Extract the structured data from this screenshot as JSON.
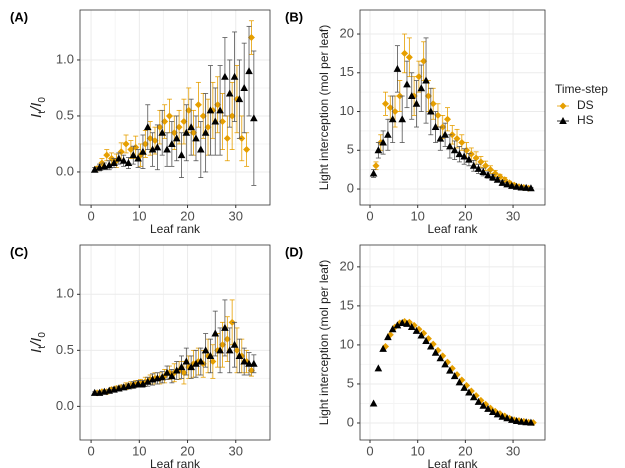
{
  "chart_data": [
    {
      "type": "scatter",
      "panel": "(A)",
      "xlabel": "Leaf rank",
      "ylabel": [
        "I",
        "t",
        "/I",
        "0"
      ],
      "xlim": [
        -2.3,
        37.1
      ],
      "ylim": [
        -0.295,
        1.446
      ],
      "xticks": [
        0,
        10,
        20,
        30
      ],
      "yticks": [
        {
          "value": 0,
          "label": "0.0"
        },
        {
          "value": 0.5,
          "label": "0.5"
        },
        {
          "value": 1,
          "label": "1.0"
        }
      ],
      "grid": true,
      "series": [
        {
          "color": "#E69F00",
          "marker": "diamond",
          "x": [
            1,
            2,
            3,
            4,
            5,
            6,
            7,
            8,
            9,
            10,
            11,
            12,
            13,
            14,
            15,
            16,
            17,
            18,
            19,
            20,
            21,
            22,
            23,
            24,
            25,
            26,
            27,
            28,
            29,
            30,
            31,
            32,
            33
          ],
          "values": [
            0.03,
            0.08,
            0.15,
            0.12,
            0.1,
            0.18,
            0.25,
            0.2,
            0.22,
            0.15,
            0.25,
            0.3,
            0.28,
            0.4,
            0.45,
            0.5,
            0.35,
            0.4,
            0.45,
            0.55,
            0.35,
            0.6,
            0.5,
            0.4,
            0.55,
            0.6,
            0.45,
            0.3,
            0.5,
            0.65,
            0.3,
            0.2,
            1.2
          ],
          "errors": [
            0.02,
            0.04,
            0.05,
            0.05,
            0.06,
            0.08,
            0.08,
            0.08,
            0.1,
            0.1,
            0.12,
            0.15,
            0.12,
            0.15,
            0.15,
            0.15,
            0.15,
            0.15,
            0.2,
            0.2,
            0.2,
            0.2,
            0.2,
            0.25,
            0.25,
            0.25,
            0.25,
            0.2,
            0.3,
            0.3,
            0.2,
            0.15,
            0.15
          ]
        },
        {
          "color": "#000000",
          "marker": "triangle",
          "x": [
            1,
            2,
            3,
            4,
            5,
            6,
            7,
            8,
            9,
            10,
            11,
            12,
            13,
            14,
            15,
            16,
            17,
            18,
            19,
            20,
            21,
            22,
            23,
            24,
            25,
            26,
            27,
            28,
            29,
            30,
            31,
            32,
            33,
            34
          ],
          "values": [
            0.02,
            0.04,
            0.05,
            0.06,
            0.08,
            0.12,
            0.1,
            0.08,
            0.15,
            0.12,
            0.18,
            0.4,
            0.2,
            0.22,
            0.35,
            0.2,
            0.25,
            0.3,
            0.15,
            0.35,
            0.4,
            0.3,
            0.2,
            0.35,
            0.55,
            0.45,
            0.55,
            0.85,
            0.7,
            0.85,
            0.65,
            0.75,
            0.9,
            0.48
          ],
          "errors": [
            0.02,
            0.03,
            0.03,
            0.04,
            0.04,
            0.05,
            0.05,
            0.05,
            0.08,
            0.08,
            0.15,
            0.2,
            0.15,
            0.2,
            0.2,
            0.15,
            0.2,
            0.2,
            0.2,
            0.25,
            0.25,
            0.2,
            0.25,
            0.35,
            0.4,
            0.3,
            0.4,
            0.35,
            0.3,
            0.4,
            0.35,
            0.4,
            0.4,
            0.6
          ]
        }
      ]
    },
    {
      "type": "scatter",
      "panel": "(B)",
      "xlabel": "Leaf rank",
      "ylabel": [
        "Light interception (mol per leaf)"
      ],
      "xlim": [
        -2.1,
        36.7
      ],
      "ylim": [
        -2.06,
        23.1
      ],
      "xticks": [
        0,
        10,
        20,
        30
      ],
      "yticks": [
        0,
        5,
        10,
        15,
        20
      ],
      "grid": true,
      "legend": {
        "title": "Time-step",
        "position": "right"
      },
      "series": [
        {
          "name": "DS",
          "color": "#E69F00",
          "marker": "diamond",
          "x": [
            1,
            2,
            3,
            4,
            5,
            6,
            7,
            8,
            9,
            10,
            11,
            12,
            13,
            14,
            15,
            16,
            17,
            18,
            19,
            20,
            21,
            22,
            23,
            24,
            25,
            26,
            27,
            28,
            29,
            30,
            31,
            32,
            33
          ],
          "values": [
            3,
            6,
            11,
            10.5,
            10,
            12,
            17.5,
            17,
            12,
            14.5,
            16.5,
            12,
            11,
            9.5,
            8,
            9,
            7,
            6.5,
            6,
            5,
            4.5,
            4,
            3.5,
            3,
            2.5,
            2,
            1.6,
            1.2,
            0.8,
            0.5,
            0.3,
            0.2,
            0.1
          ],
          "errors": [
            0.5,
            1,
            1.5,
            1.5,
            2,
            2,
            2.5,
            2.5,
            2.5,
            2,
            2.5,
            2,
            2,
            1.5,
            1.5,
            1.5,
            1.2,
            1.2,
            1,
            1,
            0.8,
            0.8,
            0.7,
            0.6,
            0.5,
            0.4,
            0.3,
            0.3,
            0.2,
            0.2,
            0.1,
            0.1,
            0.1
          ]
        },
        {
          "name": "HS",
          "color": "#000000",
          "marker": "triangle",
          "x": [
            1,
            2,
            3,
            4,
            5,
            6,
            7,
            8,
            9,
            10,
            11,
            12,
            13,
            14,
            15,
            16,
            17,
            18,
            19,
            20,
            21,
            22,
            23,
            24,
            25,
            26,
            27,
            28,
            29,
            30,
            31,
            32,
            33,
            34
          ],
          "values": [
            2,
            5,
            6,
            7,
            9,
            15.5,
            9,
            13.5,
            12,
            11,
            13,
            14,
            10,
            8,
            6.5,
            7,
            5.5,
            5,
            4.5,
            4.2,
            3.8,
            3,
            2.6,
            2.2,
            1.8,
            1.5,
            1.2,
            0.8,
            0.6,
            0.4,
            0.3,
            0.2,
            0.15,
            0.1
          ],
          "errors": [
            0.5,
            1,
            1.5,
            2,
            3,
            3,
            3,
            3,
            3,
            3,
            3,
            5.5,
            3,
            2,
            1.5,
            1.5,
            1.5,
            1.2,
            1,
            1,
            0.8,
            0.7,
            0.6,
            0.5,
            0.4,
            0.4,
            0.3,
            0.3,
            0.2,
            0.2,
            0.1,
            0.1,
            0.1,
            0.1
          ]
        }
      ]
    },
    {
      "type": "scatter",
      "panel": "(C)",
      "xlabel": "Leaf rank",
      "ylabel": [
        "I",
        "t",
        "/I",
        "0"
      ],
      "xlim": [
        -2.3,
        37.1
      ],
      "ylim": [
        -0.3,
        1.44
      ],
      "xticks": [
        0,
        10,
        20,
        30
      ],
      "yticks": [
        {
          "value": 0,
          "label": "0.0"
        },
        {
          "value": 0.5,
          "label": "0.5"
        },
        {
          "value": 1,
          "label": "1.0"
        }
      ],
      "grid": true,
      "series": [
        {
          "color": "#E69F00",
          "marker": "diamond",
          "x": [
            1,
            2,
            3,
            4,
            5,
            6,
            7,
            8,
            9,
            10,
            11,
            12,
            13,
            14,
            15,
            16,
            17,
            18,
            19,
            20,
            21,
            22,
            23,
            24,
            25,
            26,
            27,
            28,
            29,
            30,
            31,
            32,
            33
          ],
          "values": [
            0.12,
            0.13,
            0.13,
            0.15,
            0.16,
            0.17,
            0.18,
            0.19,
            0.2,
            0.21,
            0.22,
            0.24,
            0.25,
            0.25,
            0.27,
            0.3,
            0.3,
            0.32,
            0.3,
            0.35,
            0.38,
            0.4,
            0.38,
            0.45,
            0.4,
            0.5,
            0.55,
            0.6,
            0.75,
            0.5,
            0.45,
            0.4,
            0.32
          ],
          "errors": [
            0.01,
            0.01,
            0.02,
            0.02,
            0.02,
            0.02,
            0.03,
            0.03,
            0.03,
            0.03,
            0.04,
            0.04,
            0.05,
            0.05,
            0.06,
            0.06,
            0.08,
            0.08,
            0.1,
            0.1,
            0.12,
            0.12,
            0.12,
            0.15,
            0.15,
            0.15,
            0.2,
            0.2,
            0.2,
            0.2,
            0.15,
            0.1,
            0.05
          ]
        },
        {
          "color": "#000000",
          "marker": "triangle",
          "x": [
            1,
            2,
            3,
            4,
            5,
            6,
            7,
            8,
            9,
            10,
            11,
            12,
            13,
            14,
            15,
            16,
            17,
            18,
            19,
            20,
            21,
            22,
            23,
            24,
            25,
            26,
            27,
            28,
            29,
            30,
            31,
            32,
            33,
            34
          ],
          "values": [
            0.12,
            0.12,
            0.13,
            0.14,
            0.15,
            0.16,
            0.17,
            0.18,
            0.19,
            0.2,
            0.2,
            0.22,
            0.24,
            0.25,
            0.26,
            0.3,
            0.27,
            0.32,
            0.35,
            0.4,
            0.35,
            0.38,
            0.4,
            0.5,
            0.45,
            0.65,
            0.5,
            0.7,
            0.5,
            0.55,
            0.45,
            0.4,
            0.38,
            0.38
          ],
          "errors": [
            0.01,
            0.01,
            0.01,
            0.01,
            0.02,
            0.02,
            0.02,
            0.02,
            0.03,
            0.03,
            0.03,
            0.04,
            0.05,
            0.05,
            0.05,
            0.06,
            0.06,
            0.08,
            0.1,
            0.12,
            0.1,
            0.12,
            0.12,
            0.15,
            0.15,
            0.2,
            0.2,
            0.25,
            0.2,
            0.2,
            0.15,
            0.12,
            0.1,
            0.08
          ]
        }
      ]
    },
    {
      "type": "scatter",
      "panel": "(D)",
      "xlabel": "Leaf rank",
      "ylabel": [
        "Light interception (mol per leaf)"
      ],
      "xlim": [
        -2.1,
        36.7
      ],
      "ylim": [
        -2.18,
        22.8
      ],
      "xticks": [
        0,
        10,
        20,
        30
      ],
      "yticks": [
        0,
        5,
        10,
        15,
        20
      ],
      "grid": true,
      "series": [
        {
          "color": "#E69F00",
          "marker": "diamond",
          "x": [
            3,
            4,
            5,
            6,
            7,
            8,
            9,
            10,
            11,
            12,
            13,
            14,
            15,
            16,
            17,
            18,
            19,
            20,
            21,
            22,
            23,
            24,
            25,
            26,
            27,
            28,
            29,
            30,
            31,
            32,
            33,
            34
          ],
          "values": [
            9.8,
            11.3,
            12.3,
            12.8,
            13.0,
            12.9,
            12.5,
            12.0,
            11.5,
            10.8,
            10.1,
            9.3,
            8.6,
            7.8,
            7.0,
            6.2,
            5.5,
            4.8,
            4.1,
            3.5,
            2.9,
            2.4,
            1.9,
            1.5,
            1.2,
            0.9,
            0.6,
            0.4,
            0.3,
            0.2,
            0.1,
            0.05
          ]
        },
        {
          "color": "#000000",
          "marker": "triangle",
          "x": [
            1,
            2,
            3,
            4,
            5,
            6,
            7,
            8,
            9,
            10,
            11,
            12,
            13,
            14,
            15,
            16,
            17,
            18,
            19,
            20,
            21,
            22,
            23,
            24,
            25,
            26,
            27,
            28,
            29,
            30,
            31,
            32,
            33,
            34
          ],
          "values": [
            2.5,
            7,
            9.5,
            11,
            12,
            12.5,
            12.8,
            12.7,
            12.3,
            11.8,
            11.2,
            10.5,
            9.8,
            9,
            8.3,
            7.5,
            6.7,
            6,
            5.2,
            4.5,
            3.9,
            3.3,
            2.7,
            2.2,
            1.8,
            1.4,
            1.1,
            0.8,
            0.6,
            0.4,
            0.25,
            0.15,
            0.1,
            0.05
          ]
        }
      ]
    }
  ]
}
